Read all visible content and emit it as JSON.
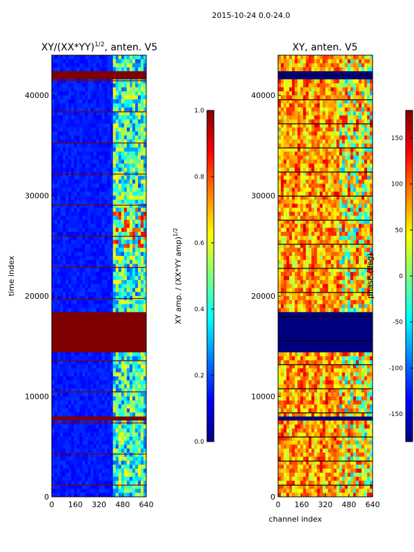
{
  "figure_title": "2015-10-24 0.0-24.0",
  "colorscale": [
    "#00007f",
    "#0000ff",
    "#007fff",
    "#00ffff",
    "#7fff7f",
    "#ffff00",
    "#ff7f00",
    "#ff0000",
    "#7f0000"
  ],
  "chart_data": [
    {
      "type": "heatmap",
      "title_main": "XY/(XX*YY)",
      "title_exp": "1/2",
      "title_suffix": ", anten. V5",
      "xlabel": "",
      "ylabel": "time index",
      "x_ticks": [
        0,
        160,
        320,
        480,
        640
      ],
      "y_ticks": [
        0,
        10000,
        20000,
        30000,
        40000
      ],
      "xlim": [
        0,
        640
      ],
      "ylim": [
        0,
        44000
      ],
      "value_range": [
        0.0,
        1.0
      ],
      "flagged_time_ranges": [
        [
          14500,
          18300
        ],
        [
          41500,
          42300
        ],
        [
          7700,
          8000
        ]
      ],
      "colorbar": {
        "label_main": "XY amp. / (XX*YY amp)",
        "label_exp": "1/2",
        "range": [
          0.0,
          1.0
        ],
        "ticks": [
          "0.0",
          "0.2",
          "0.4",
          "0.6",
          "0.8",
          "1.0"
        ]
      }
    },
    {
      "type": "heatmap",
      "title_main": "XY, anten. V5",
      "xlabel": "channel index",
      "ylabel": "",
      "x_ticks": [
        0,
        160,
        320,
        480,
        640
      ],
      "y_ticks": [
        0,
        10000,
        20000,
        30000,
        40000
      ],
      "xlim": [
        0,
        640
      ],
      "ylim": [
        0,
        44000
      ],
      "value_range": [
        -180,
        180
      ],
      "flagged_time_ranges": [
        [
          14500,
          18300
        ],
        [
          41500,
          42300
        ],
        [
          7700,
          8000
        ]
      ],
      "colorbar": {
        "label_main": "phase (deg)",
        "range": [
          -180,
          180
        ],
        "ticks": [
          "-150",
          "-100",
          "-50",
          "0",
          "50",
          "100",
          "150"
        ]
      }
    }
  ]
}
